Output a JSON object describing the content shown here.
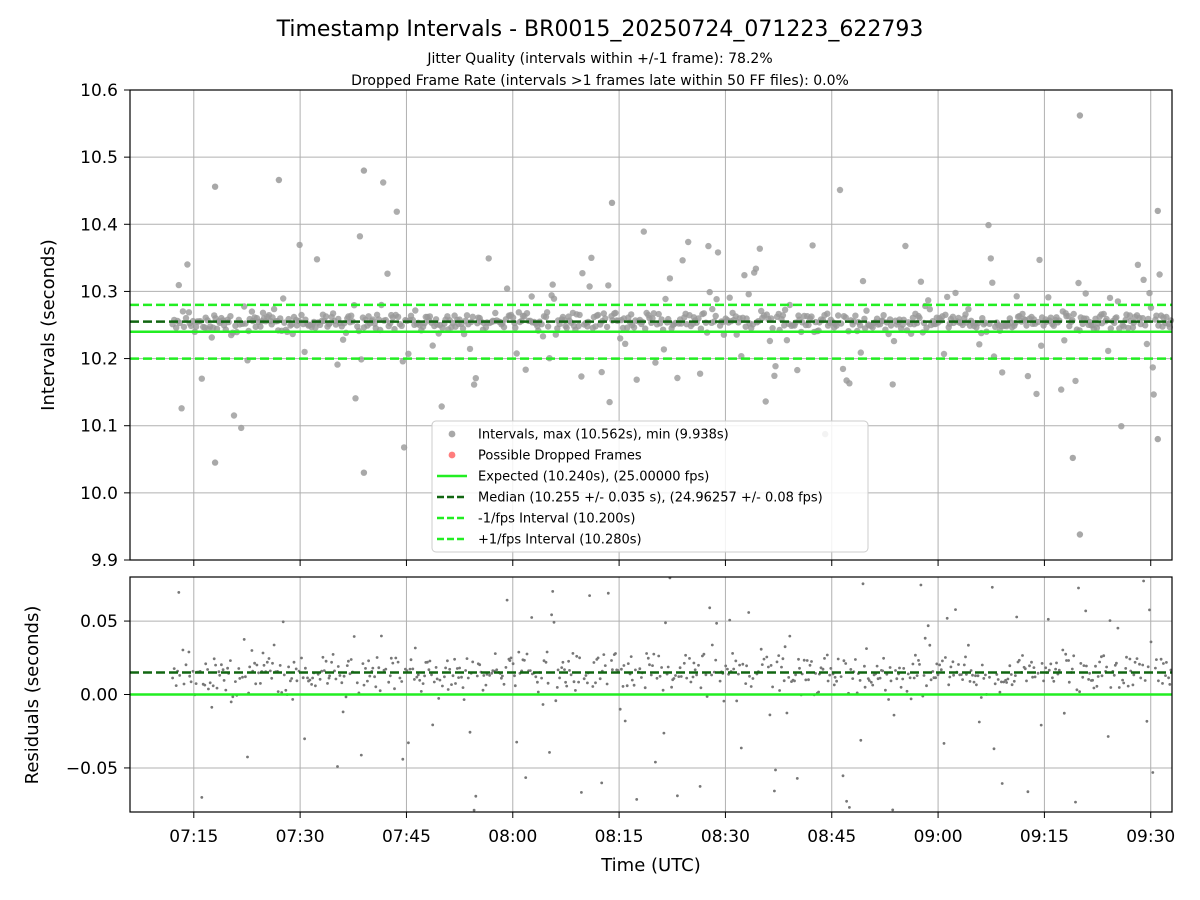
{
  "chart_data": [
    {
      "type": "scatter",
      "title": "Timestamp Intervals - BR0015_20250724_071223_622793",
      "subtitle_lines": [
        "Jitter Quality (intervals within +/-1 frame): 78.2%",
        "Dropped Frame Rate (intervals >1 frames late within 50 FF files): 0.0%"
      ],
      "ylabel": "Intervals (seconds)",
      "ylim": [
        9.9,
        10.6
      ],
      "y_ticks": [
        "10.6",
        "10.5",
        "10.4",
        "10.3",
        "10.2",
        "10.1",
        "10.0",
        "9.9"
      ],
      "y_tick_values": [
        10.6,
        10.5,
        10.4,
        10.3,
        10.2,
        10.1,
        10.0,
        9.9
      ],
      "grid": true,
      "legend_placement": "lower-center",
      "series": [
        {
          "name": "Intervals, max (10.562s), min (9.938s)",
          "kind": "scatter",
          "color": "#999999",
          "median": 10.255,
          "spread": 0.035,
          "count": 700
        },
        {
          "name": "Possible Dropped Frames",
          "kind": "scatter",
          "color": "#ff6666",
          "values": []
        },
        {
          "name": "Expected (10.240s), (25.00000 fps)",
          "kind": "hline",
          "y": 10.24,
          "color": "#22ee22",
          "style": "solid"
        },
        {
          "name": "Median (10.255 +/- 0.035 s), (24.96257 +/- 0.08 fps)",
          "kind": "hline",
          "y": 10.255,
          "color": "#116611",
          "style": "dashed"
        },
        {
          "name": "-1/fps Interval (10.200s)",
          "kind": "hline",
          "y": 10.2,
          "color": "#22ee22",
          "style": "dashed"
        },
        {
          "name": "+1/fps Interval (10.280s)",
          "kind": "hline",
          "y": 10.28,
          "color": "#22ee22",
          "style": "dashed"
        }
      ],
      "annotated_points": [
        {
          "time": "07:18",
          "y": 10.456
        },
        {
          "time": "07:18",
          "y": 10.045
        },
        {
          "time": "07:27",
          "y": 10.466
        },
        {
          "time": "07:39",
          "y": 10.48
        },
        {
          "time": "07:39",
          "y": 10.03
        },
        {
          "time": "08:14",
          "y": 10.432
        },
        {
          "time": "09:20",
          "y": 10.562
        },
        {
          "time": "09:20",
          "y": 9.938
        },
        {
          "time": "09:19",
          "y": 10.052
        },
        {
          "time": "09:31",
          "y": 10.42
        },
        {
          "time": "09:31",
          "y": 10.08
        }
      ]
    },
    {
      "type": "scatter",
      "ylabel": "Residuals (seconds)",
      "xlabel": "Time (UTC)",
      "ylim": [
        -0.08,
        0.08
      ],
      "y_ticks": [
        "0.05",
        "0.00",
        "−0.05"
      ],
      "y_tick_values": [
        0.05,
        0.0,
        -0.05
      ],
      "x_range": [
        "07:06",
        "09:33"
      ],
      "x_ticks": [
        "07:15",
        "07:30",
        "07:45",
        "08:00",
        "08:15",
        "08:30",
        "08:45",
        "09:00",
        "09:15",
        "09:30"
      ],
      "time_start": "07:12",
      "time_end": "09:33",
      "grid": true,
      "series": [
        {
          "name": "residuals",
          "kind": "scatter",
          "color": "#777777"
        },
        {
          "name": "expected",
          "kind": "hline",
          "y": 0.0,
          "color": "#22ee22",
          "style": "solid"
        },
        {
          "name": "median",
          "kind": "hline",
          "y": 0.015,
          "color": "#116611",
          "style": "dashed"
        }
      ]
    }
  ]
}
